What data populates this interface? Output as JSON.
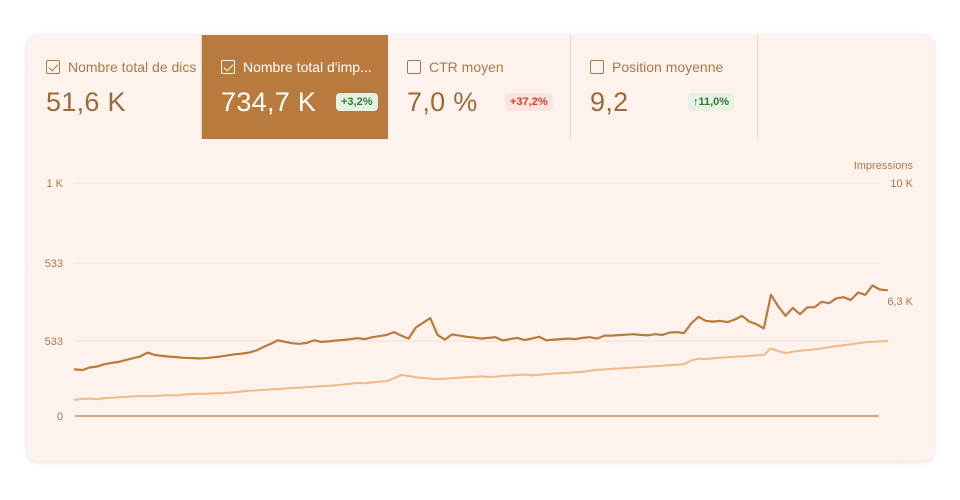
{
  "metrics": [
    {
      "label": "Nombre total de dics",
      "value": "51,6 K",
      "checked": true,
      "selected": false,
      "badge": ""
    },
    {
      "label": "Nombre total d'imp...",
      "value": "734,7 K",
      "checked": true,
      "selected": true,
      "badge": "+3,2%",
      "badge_dir": "up"
    },
    {
      "label": "CTR moyen",
      "value": "7,0 %",
      "checked": false,
      "selected": false,
      "badge": "+37,2%",
      "badge_dir": "down"
    },
    {
      "label": "Position moyenne",
      "value": "9,2",
      "checked": false,
      "selected": false,
      "badge": "↑11,0%",
      "badge_dir": "up"
    }
  ],
  "colors": {
    "accent": "#b87b3d",
    "line_dark": "#b87b3d",
    "line_light": "#f0b988",
    "badge_up": "#2e7d32",
    "badge_down": "#d13f2a"
  },
  "chart_data": {
    "type": "line",
    "left_axis": {
      "ticks": [
        "1 K",
        "533",
        "533",
        "0"
      ]
    },
    "right_axis": {
      "title": "Impressions",
      "ticks": [
        "10 K",
        "6,3 K"
      ]
    },
    "series": [
      {
        "axis": "left",
        "values": [
          200,
          197,
          208,
          212,
          222,
          228,
          232,
          240,
          248,
          256,
          272,
          262,
          258,
          255,
          253,
          250,
          249,
          247,
          248,
          252,
          255,
          260,
          265,
          268,
          272,
          281,
          296,
          310,
          325,
          318,
          312,
          310,
          314,
          325,
          318,
          320,
          324,
          326,
          330,
          334,
          330,
          338,
          343,
          348,
          360,
          345,
          332,
          380,
          400,
          420,
          348,
          328,
          350,
          345,
          340,
          337,
          332,
          335,
          338,
          324,
          330,
          335,
          326,
          332,
          340,
          325,
          328,
          330,
          332,
          330,
          335,
          338,
          332,
          345,
          345,
          347,
          349,
          351,
          348,
          346,
          351,
          348,
          358,
          360,
          356,
          398,
          426,
          408,
          405,
          408,
          403,
          414,
          430,
          405,
          394,
          376,
          520,
          470,
          430,
          464,
          437,
          466,
          467,
          490,
          484,
          505,
          510,
          498,
          530,
          520,
          560,
          543,
          540
        ],
        "color": "#b87b3d"
      },
      {
        "axis": "left",
        "values": [
          70,
          73,
          75,
          72,
          77,
          78,
          80,
          82,
          84,
          86,
          85,
          86,
          88,
          89,
          88,
          92,
          94,
          96,
          95,
          97,
          98,
          100,
          102,
          105,
          108,
          110,
          112,
          114,
          116,
          118,
          120,
          122,
          124,
          126,
          128,
          130,
          132,
          135,
          138,
          142,
          140,
          144,
          147,
          150,
          162,
          176,
          172,
          166,
          163,
          161,
          158,
          160,
          162,
          165,
          167,
          168,
          170,
          168,
          169,
          172,
          174,
          176,
          178,
          175,
          177,
          180,
          182,
          184,
          186,
          188,
          190,
          194,
          198,
          200,
          202,
          204,
          206,
          208,
          210,
          212,
          214,
          216,
          218,
          220,
          222,
          238,
          246,
          244,
          248,
          250,
          252,
          254,
          256,
          258,
          260,
          262,
          290,
          278,
          270,
          276,
          280,
          283,
          286,
          290,
          295,
          300,
          304,
          308,
          312,
          316,
          318,
          320,
          322
        ],
        "color": "#f0b988"
      }
    ],
    "ylim": [
      0,
      1000
    ],
    "grid": true,
    "legend": "none"
  }
}
